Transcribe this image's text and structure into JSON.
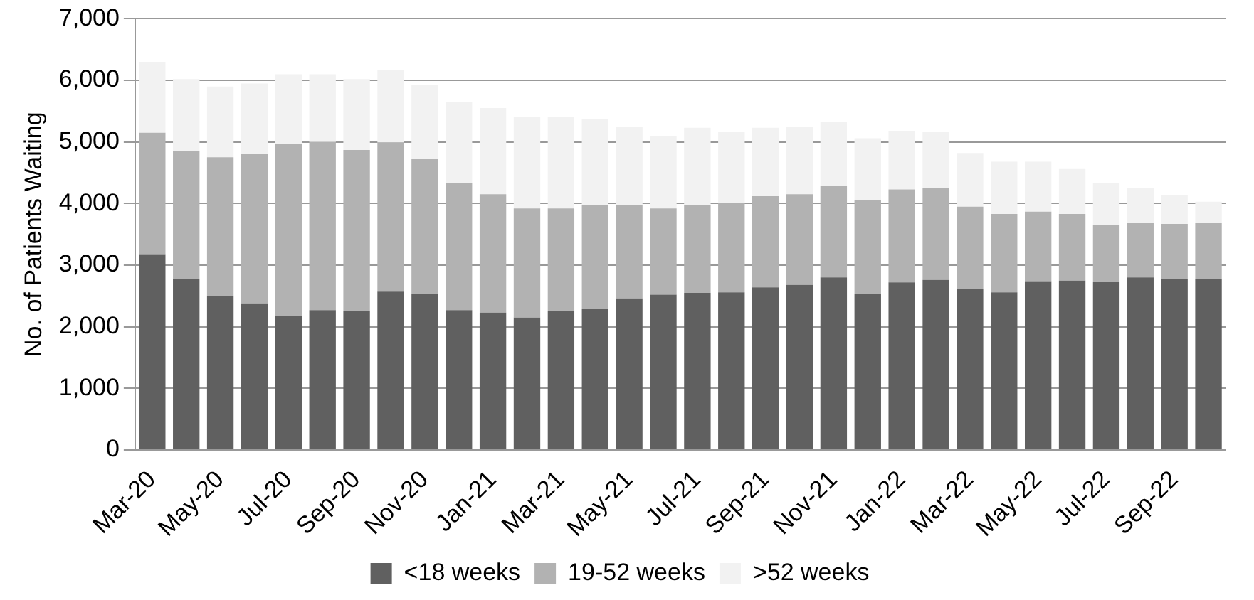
{
  "chart_data": {
    "type": "bar",
    "stacked": true,
    "ylabel": "No. of Patients Waiting",
    "categories": [
      "Mar-20",
      null,
      "May-20",
      null,
      "Jul-20",
      null,
      "Sep-20",
      null,
      "Nov-20",
      null,
      "Jan-21",
      null,
      "Mar-21",
      null,
      "May-21",
      null,
      "Jul-21",
      null,
      "Sep-21",
      null,
      "Nov-21",
      null,
      "Jan-22",
      null,
      "Mar-22",
      null,
      "May-22",
      null,
      "Jul-22",
      null,
      "Sep-22",
      null
    ],
    "series": [
      {
        "name": "<18 weeks",
        "color": "#606060",
        "values": [
          3180,
          2780,
          2500,
          2380,
          2180,
          2270,
          2250,
          2570,
          2530,
          2270,
          2230,
          2150,
          2250,
          2290,
          2460,
          2520,
          2550,
          2560,
          2640,
          2680,
          2800,
          2530,
          2720,
          2760,
          2620,
          2560,
          2740,
          2750,
          2730,
          2800,
          2780,
          2780
        ]
      },
      {
        "name": "19-52 weeks",
        "color": "#b2b2b2",
        "values": [
          1970,
          2070,
          2250,
          2420,
          2790,
          2730,
          2620,
          2420,
          2190,
          2060,
          1920,
          1770,
          1670,
          1690,
          1520,
          1400,
          1430,
          1440,
          1480,
          1470,
          1480,
          1520,
          1510,
          1490,
          1330,
          1270,
          1130,
          1080,
          920,
          880,
          890,
          910
        ]
      },
      {
        "name": ">52 weeks",
        "color": "#f2f2f2",
        "values": [
          1150,
          1170,
          1150,
          1150,
          1130,
          1100,
          1150,
          1180,
          1200,
          1320,
          1400,
          1480,
          1480,
          1390,
          1270,
          1180,
          1250,
          1170,
          1110,
          1100,
          1040,
          1010,
          950,
          910,
          870,
          850,
          810,
          730,
          690,
          570,
          460,
          340
        ]
      }
    ],
    "ylim": [
      0,
      7000
    ],
    "yticks": [
      0,
      {
        "value": 1000,
        "label": "1,000"
      },
      {
        "value": 2000,
        "label": "2,000"
      },
      {
        "value": 3000,
        "label": "3,000"
      },
      {
        "value": 4000,
        "label": "4,000"
      },
      {
        "value": 5000,
        "label": "5,000"
      },
      {
        "value": 6000,
        "label": "6,000"
      },
      {
        "value": 7000,
        "label": "7,000"
      }
    ],
    "grid": "y",
    "legend": "bottom"
  }
}
